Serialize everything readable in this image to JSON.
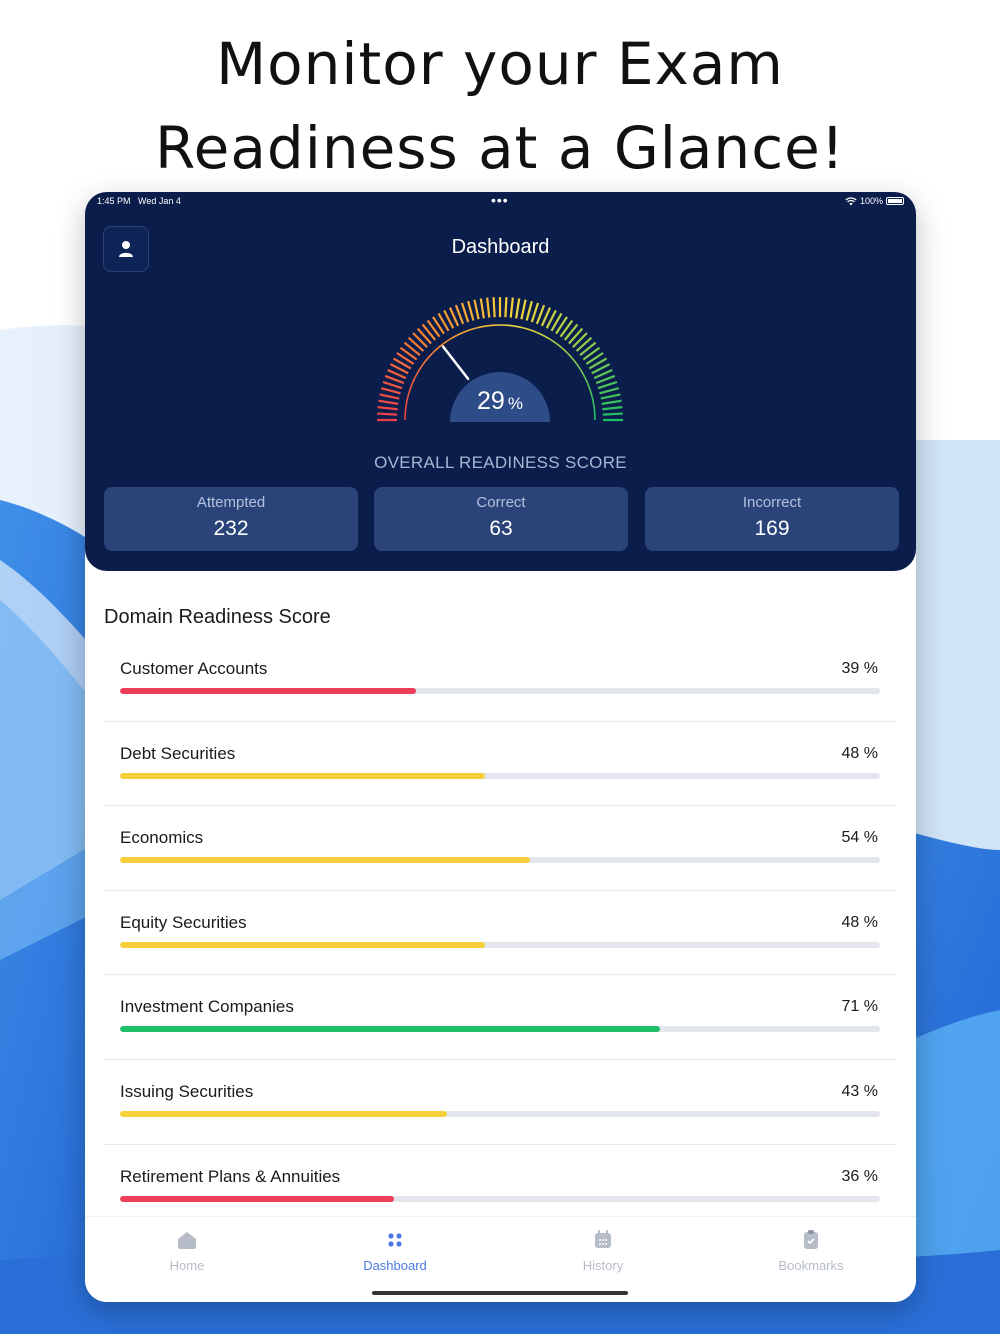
{
  "headline": {
    "line1": "Monitor your Exam",
    "line2": "Readiness at a Glance!"
  },
  "status_bar": {
    "time": "1:45 PM",
    "date": "Wed Jan 4",
    "battery": "100%"
  },
  "header": {
    "title": "Dashboard",
    "profile_icon": "user-icon"
  },
  "gauge": {
    "value": 29,
    "value_text": "29",
    "unit": "%",
    "label": "OVERALL READINESS SCORE"
  },
  "stats": [
    {
      "label": "Attempted",
      "value": "232"
    },
    {
      "label": "Correct",
      "value": "63"
    },
    {
      "label": "Incorrect",
      "value": "169"
    }
  ],
  "domains": {
    "title": "Domain Readiness Score",
    "items": [
      {
        "name": "Customer Accounts",
        "pct": "39 %",
        "value": 39,
        "color": "#ee3e5a"
      },
      {
        "name": "Debt Securities",
        "pct": "48 %",
        "value": 48,
        "color": "#f7cf3a"
      },
      {
        "name": "Economics",
        "pct": "54 %",
        "value": 54,
        "color": "#f7cf3a"
      },
      {
        "name": "Equity Securities",
        "pct": "48 %",
        "value": 48,
        "color": "#f7cf3a"
      },
      {
        "name": "Investment Companies",
        "pct": "71 %",
        "value": 71,
        "color": "#1fbf6a"
      },
      {
        "name": "Issuing Securities",
        "pct": "43 %",
        "value": 43,
        "color": "#f7cf3a"
      },
      {
        "name": "Retirement Plans & Annuities",
        "pct": "36 %",
        "value": 36,
        "color": "#ee3e5a"
      }
    ]
  },
  "tabs": [
    {
      "label": "Home",
      "icon": "home-icon"
    },
    {
      "label": "Dashboard",
      "icon": "dashboard-grid-icon"
    },
    {
      "label": "History",
      "icon": "calendar-icon"
    },
    {
      "label": "Bookmarks",
      "icon": "clipboard-icon"
    }
  ],
  "colors": {
    "header_bg": "#0a1d4b",
    "card_bg": "#2a4479",
    "accent": "#4a7be0"
  }
}
